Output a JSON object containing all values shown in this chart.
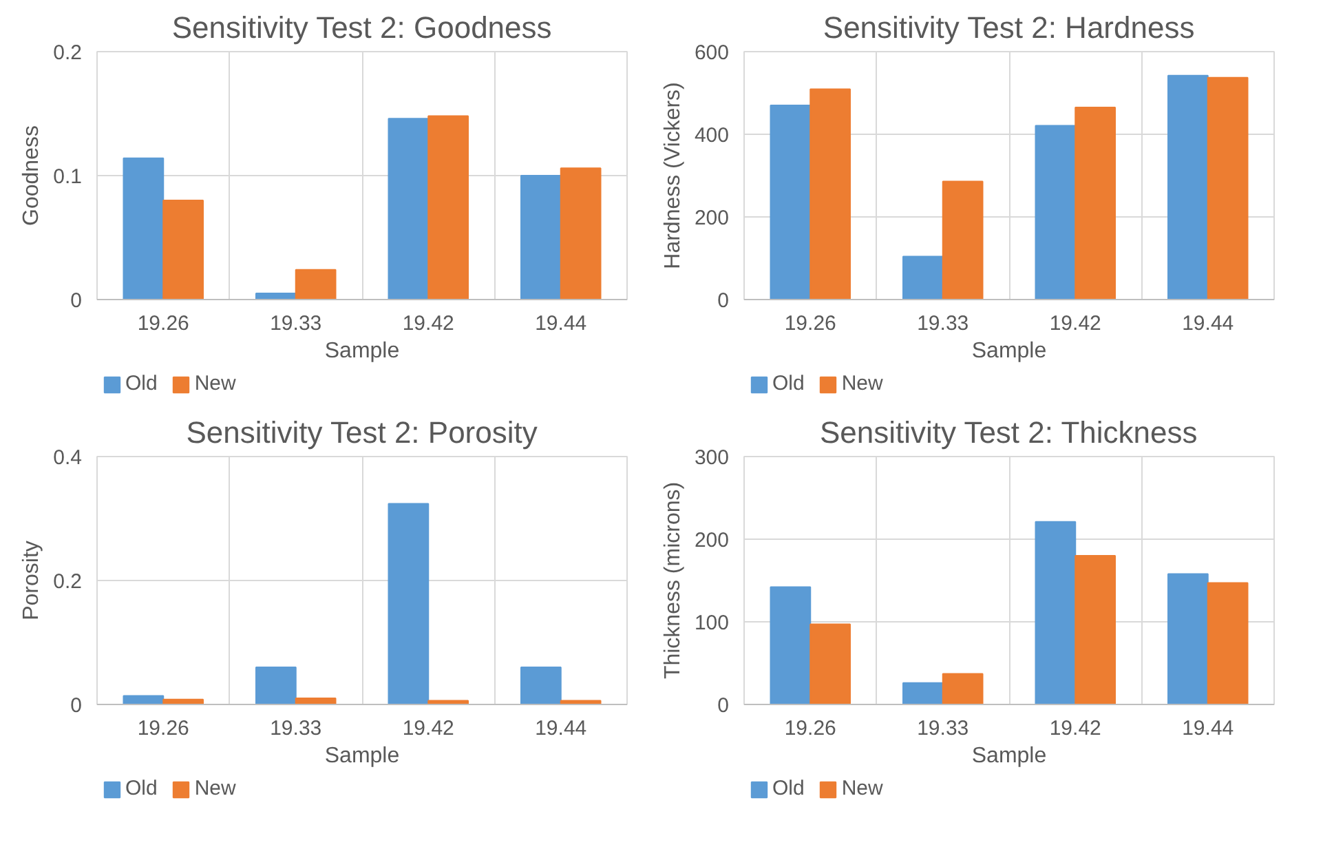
{
  "chart_data": [
    {
      "type": "bar",
      "title": "Sensitivity Test 2: Goodness",
      "xlabel": "Sample",
      "ylabel": "Goodness",
      "categories": [
        "19.26",
        "19.33",
        "19.42",
        "19.44"
      ],
      "ylim": [
        0,
        0.2
      ],
      "yticks": [
        0,
        0.1,
        0.2
      ],
      "grid": true,
      "legend": "bottom",
      "series": [
        {
          "name": "Old",
          "color": "#5b9bd5",
          "values": [
            0.114,
            0.005,
            0.146,
            0.1
          ]
        },
        {
          "name": "New",
          "color": "#ed7d31",
          "values": [
            0.08,
            0.024,
            0.148,
            0.106
          ]
        }
      ]
    },
    {
      "type": "bar",
      "title": "Sensitivity Test 2: Hardness",
      "xlabel": "Sample",
      "ylabel": "Hardness (Vickers)",
      "categories": [
        "19.26",
        "19.33",
        "19.42",
        "19.44"
      ],
      "ylim": [
        0,
        600
      ],
      "yticks": [
        0,
        200,
        400,
        600
      ],
      "grid": true,
      "legend": "bottom",
      "series": [
        {
          "name": "Old",
          "color": "#5b9bd5",
          "values": [
            470,
            104,
            421,
            542
          ]
        },
        {
          "name": "New",
          "color": "#ed7d31",
          "values": [
            509,
            286,
            465,
            537
          ]
        }
      ]
    },
    {
      "type": "bar",
      "title": "Sensitivity Test 2: Porosity",
      "xlabel": "Sample",
      "ylabel": "Porosity",
      "categories": [
        "19.26",
        "19.33",
        "19.42",
        "19.44"
      ],
      "ylim": [
        0,
        0.4
      ],
      "yticks": [
        0,
        0.2,
        0.4
      ],
      "grid": true,
      "legend": "bottom",
      "series": [
        {
          "name": "Old",
          "color": "#5b9bd5",
          "values": [
            0.014,
            0.06,
            0.324,
            0.06
          ]
        },
        {
          "name": "New",
          "color": "#ed7d31",
          "values": [
            0.008,
            0.01,
            0.006,
            0.006
          ]
        }
      ]
    },
    {
      "type": "bar",
      "title": "Sensitivity Test 2: Thickness",
      "xlabel": "Sample",
      "ylabel": "Thickness (microns)",
      "categories": [
        "19.26",
        "19.33",
        "19.42",
        "19.44"
      ],
      "ylim": [
        0,
        300
      ],
      "yticks": [
        0,
        100,
        200,
        300
      ],
      "grid": true,
      "legend": "bottom",
      "series": [
        {
          "name": "Old",
          "color": "#5b9bd5",
          "values": [
            142,
            26,
            221,
            158
          ]
        },
        {
          "name": "New",
          "color": "#ed7d31",
          "values": [
            97,
            37,
            180,
            147
          ]
        }
      ]
    }
  ]
}
